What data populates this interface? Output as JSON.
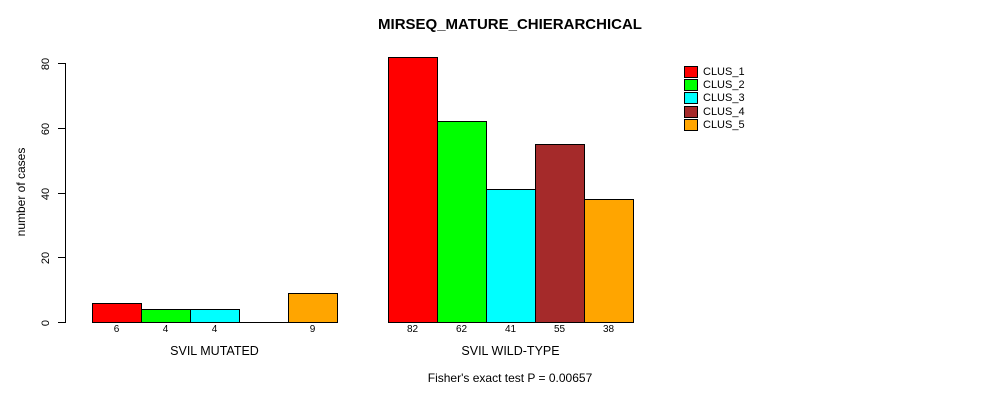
{
  "chart_data": {
    "type": "bar",
    "title": "MIRSEQ_MATURE_CHIERARCHICAL",
    "ylabel": "number of cases",
    "xlabel": "",
    "subtitle": "Fisher's exact test P = 0.00657",
    "ylim": [
      0,
      82
    ],
    "yticks": [
      0,
      20,
      40,
      60,
      80
    ],
    "grid": false,
    "legend_position": "top-right",
    "series": [
      {
        "name": "CLUS_1",
        "color": "#FF0000"
      },
      {
        "name": "CLUS_2",
        "color": "#00FF00"
      },
      {
        "name": "CLUS_3",
        "color": "#00FFFF"
      },
      {
        "name": "CLUS_4",
        "color": "#A52A2A"
      },
      {
        "name": "CLUS_5",
        "color": "#FFA500"
      }
    ],
    "groups": [
      {
        "label": "SVIL MUTATED",
        "values": [
          6,
          4,
          4,
          0,
          9
        ],
        "bar_labels": [
          "6",
          "4",
          "4",
          "",
          "9"
        ]
      },
      {
        "label": "SVIL WILD-TYPE",
        "values": [
          82,
          62,
          41,
          55,
          38
        ],
        "bar_labels": [
          "82",
          "62",
          "41",
          "55",
          "38"
        ]
      }
    ]
  }
}
